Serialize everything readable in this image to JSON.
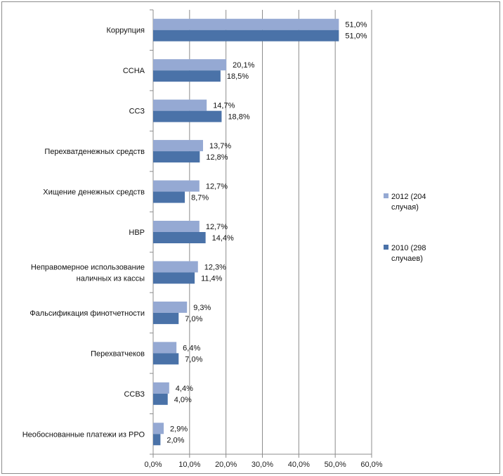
{
  "chart_data": {
    "type": "bar",
    "orientation": "horizontal",
    "categories": [
      "Коррупция",
      "ССНА",
      "ССЗ",
      "Перехватденежных средств",
      "Хищение денежных средств",
      "НВР",
      [
        "Неправомерное использование",
        "наличных из кассы"
      ],
      "Фальсификация финотчетности",
      "Перехватчеков",
      "ССВЗ",
      "Необоснованные платежи из РРО"
    ],
    "series": [
      {
        "name": [
          "2012 (204",
          "случая)"
        ],
        "color": "#95a9d3",
        "values": [
          51.0,
          20.1,
          14.7,
          13.7,
          12.7,
          12.7,
          12.3,
          9.3,
          6.4,
          4.4,
          2.9
        ],
        "labels": [
          "51,0%",
          "20,1%",
          "14,7%",
          "13,7%",
          "12,7%",
          "12,7%",
          "12,3%",
          "9,3%",
          "6,4%",
          "4,4%",
          "2,9%"
        ]
      },
      {
        "name": [
          "2010 (298",
          "случаев)"
        ],
        "color": "#4a72a8",
        "values": [
          51.0,
          18.5,
          18.8,
          12.8,
          8.7,
          14.4,
          11.4,
          7.0,
          7.0,
          4.0,
          2.0
        ],
        "labels": [
          "51,0%",
          "18,5%",
          "18,8%",
          "12,8%",
          "8,7%",
          "14,4%",
          "11,4%",
          "7,0%",
          "7,0%",
          "4,0%",
          "2,0%"
        ]
      }
    ],
    "xlim": [
      0,
      60
    ],
    "x_ticks": [
      0,
      10,
      20,
      30,
      40,
      50,
      60
    ],
    "x_tick_labels": [
      "0,0%",
      "10,0%",
      "20,0%",
      "30,0%",
      "40,0%",
      "50,0%",
      "60,0%"
    ],
    "grid": "vertical",
    "legend_position": "right",
    "gridline_color": "#8c8c8c"
  }
}
